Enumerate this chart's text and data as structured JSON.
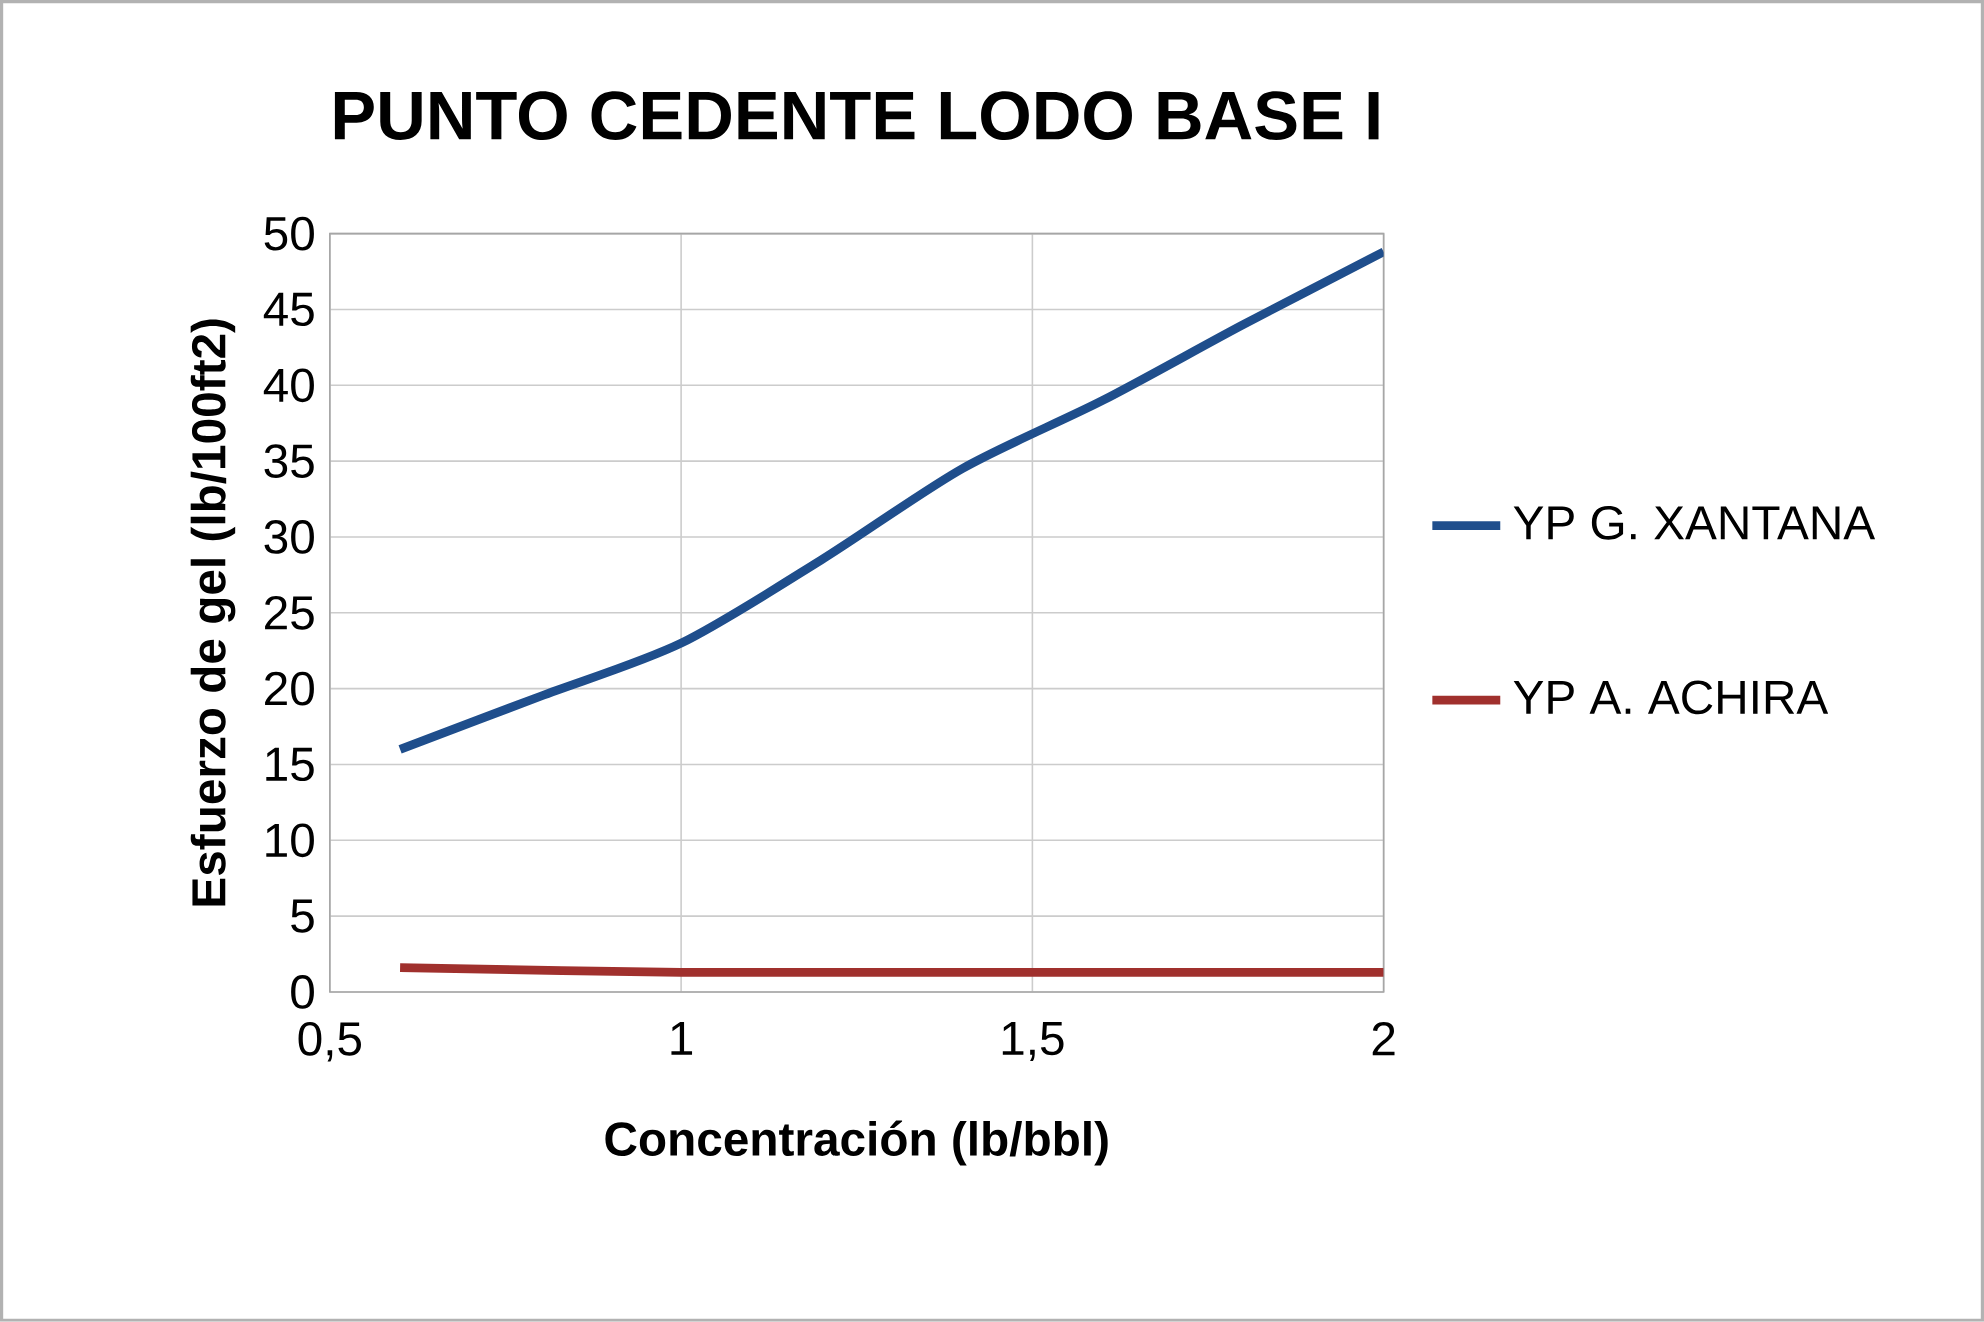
{
  "chart_data": {
    "type": "line",
    "title": "PUNTO CEDENTE  LODO BASE I",
    "xlabel": "Concentración (lb/bbl)",
    "ylabel": "Esfuerzo de gel (lb/100ft2)",
    "xlim": [
      0.5,
      2
    ],
    "xticks": [
      {
        "value": 0.5,
        "label": "0,5"
      },
      1,
      {
        "value": 1.5,
        "label": "1,5"
      },
      2
    ],
    "ylim": [
      0,
      50
    ],
    "yticks": [
      0,
      5,
      10,
      15,
      20,
      25,
      30,
      35,
      40,
      45,
      50
    ],
    "grid": true,
    "legend": "right",
    "marker": "none",
    "line_style": "solid",
    "series": [
      {
        "name": "YP G. XANTANA",
        "color": "#1f4e8c",
        "x": [
          0.6,
          0.8,
          1.0,
          1.2,
          1.4,
          1.6,
          1.8,
          2.0
        ],
        "values": [
          16,
          19.5,
          23,
          28.5,
          34.5,
          39,
          44,
          48.8
        ]
      },
      {
        "name": "YP A. ACHIRA",
        "color": "#a0302d",
        "x": [
          0.6,
          1.0,
          1.5,
          2.0
        ],
        "values": [
          1.6,
          1.3,
          1.3,
          1.3
        ]
      }
    ]
  }
}
